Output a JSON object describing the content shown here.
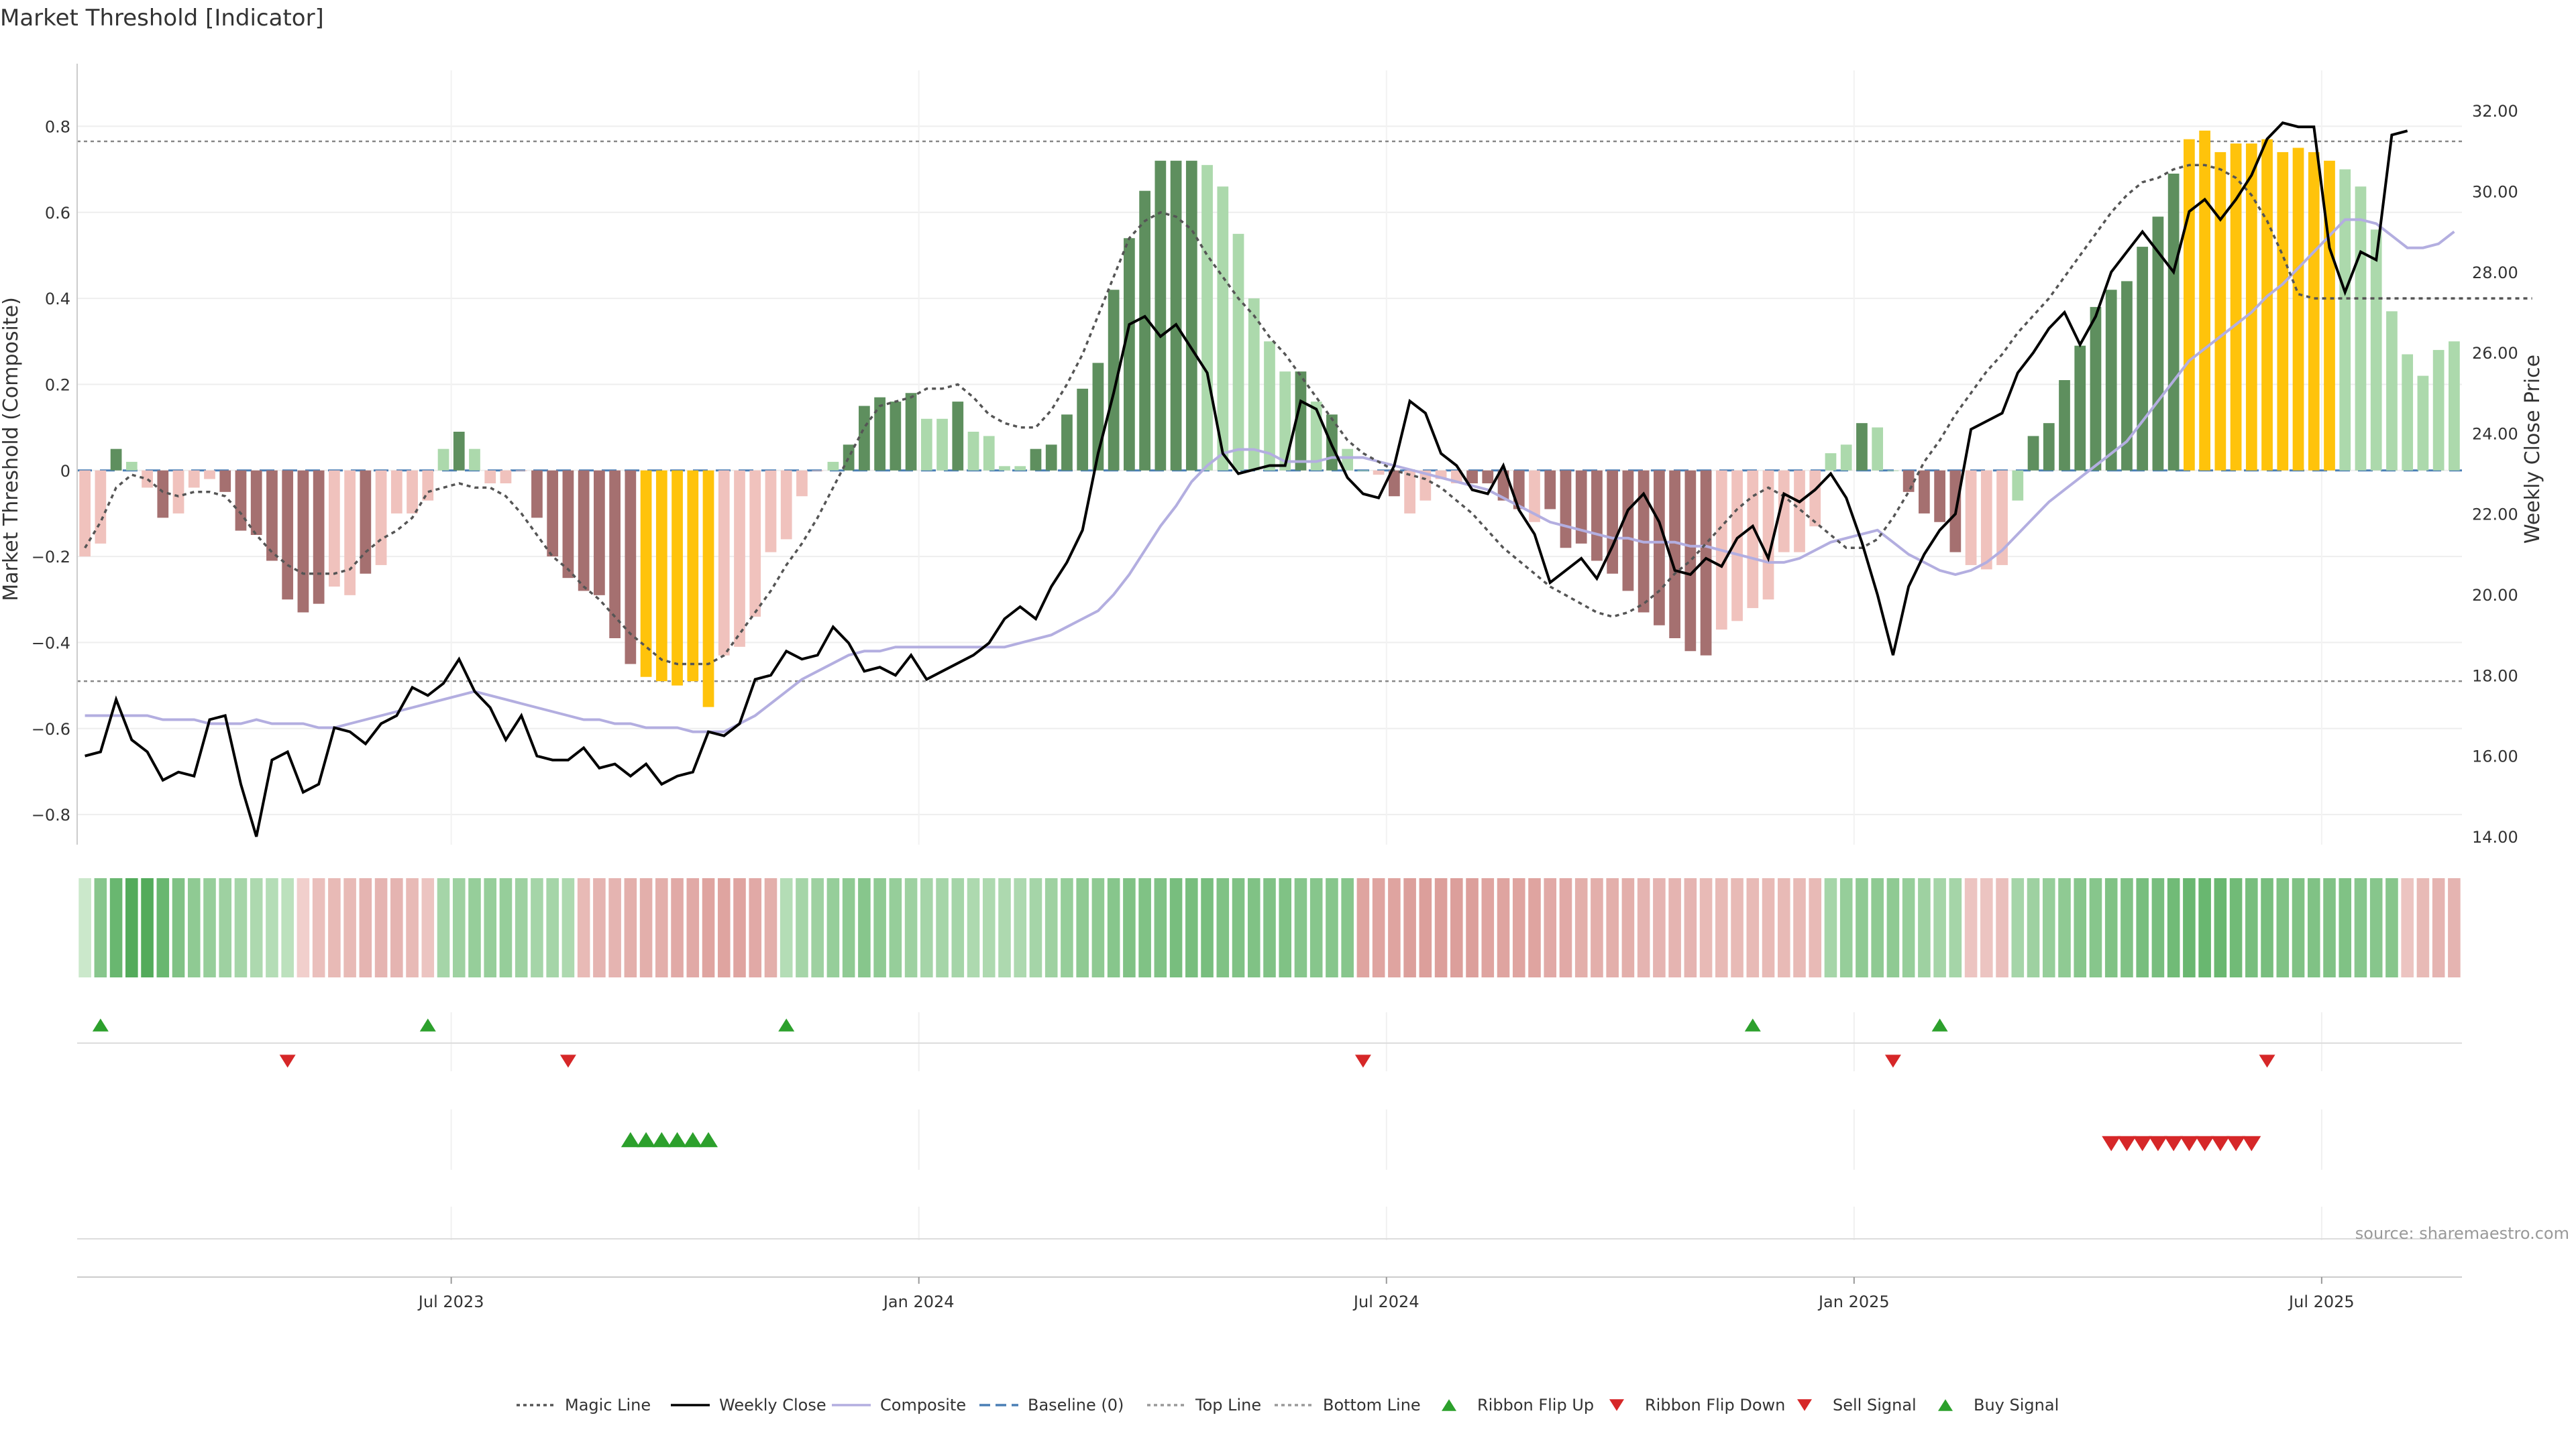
{
  "chart_data": {
    "type": "bar",
    "title": "Market Threshold [Indicator]",
    "ylabel": "Market Threshold (Composite)",
    "y2label": "Weekly Close Price",
    "ylim": [
      -0.87,
      0.93
    ],
    "y2lim": [
      13.8,
      33.0
    ],
    "yticks": [
      "0.8",
      "0.6",
      "0.4",
      "0.2",
      "0",
      "−0.2",
      "−0.4",
      "−0.6",
      "−0.8"
    ],
    "yticks_values": [
      0.8,
      0.6,
      0.4,
      0.2,
      0,
      -0.2,
      -0.4,
      -0.6,
      -0.8
    ],
    "y2ticks": [
      "32.00",
      "30.00",
      "28.00",
      "26.00",
      "24.00",
      "22.00",
      "20.00",
      "18.00",
      "16.00",
      "14.00"
    ],
    "y2ticks_values": [
      32,
      30,
      28,
      26,
      24,
      22,
      20,
      18,
      16,
      14
    ],
    "xticks": [
      "Jul 2023",
      "Jan 2024",
      "Jul 2024",
      "Jan 2025",
      "Jul 2025"
    ],
    "xticks_index": [
      23.5,
      53.5,
      83.5,
      113.5,
      143.5
    ],
    "top_line": 0.765,
    "bottom_line": -0.49,
    "baseline": 0,
    "grid": true,
    "legend_position": "bottom-center",
    "source": "source: sharemaestro.com",
    "legend": [
      {
        "label": "Magic Line",
        "style": "dotted",
        "color": "#555555"
      },
      {
        "label": "Weekly Close",
        "style": "solid",
        "color": "#000000"
      },
      {
        "label": "Composite",
        "style": "solid",
        "color": "#b3aee0"
      },
      {
        "label": "Baseline (0)",
        "style": "dashed",
        "color": "#4a7fb5"
      },
      {
        "label": "Top Line",
        "style": "dotted",
        "color": "#999999"
      },
      {
        "label": "Bottom Line",
        "style": "dotted",
        "color": "#999999"
      },
      {
        "label": "Ribbon Flip Up",
        "style": "tri-up",
        "color": "#2ca02c"
      },
      {
        "label": "Ribbon Flip Down",
        "style": "tri-down",
        "color": "#d62728"
      },
      {
        "label": "Sell Signal",
        "style": "tri-down",
        "color": "#d62728"
      },
      {
        "label": "Buy Signal",
        "style": "tri-up",
        "color": "#2ca02c"
      }
    ],
    "colors": {
      "strong_green": "#5e8f5e",
      "light_green": "#acd9ac",
      "strong_red": "#a57070",
      "light_red": "#f0c2bd",
      "extreme": "#ffc30b",
      "magic": "#555555",
      "close": "#000000",
      "composite": "#b3aee0"
    },
    "bars": [
      -0.2,
      -0.17,
      0.05,
      0.02,
      -0.04,
      -0.11,
      -0.1,
      -0.04,
      -0.02,
      -0.05,
      -0.14,
      -0.15,
      -0.21,
      -0.3,
      -0.33,
      -0.31,
      -0.27,
      -0.29,
      -0.24,
      -0.22,
      -0.1,
      -0.1,
      -0.07,
      0.05,
      0.09,
      0.05,
      -0.03,
      -0.03,
      0,
      -0.11,
      -0.2,
      -0.25,
      -0.28,
      -0.29,
      -0.39,
      -0.45,
      -0.48,
      -0.49,
      -0.5,
      -0.49,
      -0.55,
      -0.43,
      -0.41,
      -0.34,
      -0.19,
      -0.16,
      -0.06,
      0,
      0.02,
      0.06,
      0.15,
      0.17,
      0.16,
      0.18,
      0.12,
      0.12,
      0.16,
      0.09,
      0.08,
      0.01,
      0.01,
      0.05,
      0.06,
      0.13,
      0.19,
      0.25,
      0.42,
      0.54,
      0.65,
      0.72,
      0.72,
      0.72,
      0.71,
      0.66,
      0.55,
      0.4,
      0.3,
      0.23,
      0.23,
      0.16,
      0.13,
      0.05,
      0,
      -0.01,
      -0.06,
      -0.1,
      -0.07,
      -0.02,
      -0.03,
      -0.03,
      -0.03,
      -0.07,
      -0.09,
      -0.12,
      -0.09,
      -0.18,
      -0.17,
      -0.21,
      -0.24,
      -0.28,
      -0.33,
      -0.36,
      -0.39,
      -0.42,
      -0.43,
      -0.37,
      -0.35,
      -0.32,
      -0.3,
      -0.19,
      -0.19,
      -0.13,
      0.04,
      0.06,
      0.11,
      0.1,
      0,
      -0.05,
      -0.1,
      -0.12,
      -0.19,
      -0.22,
      -0.23,
      -0.22,
      -0.07,
      0.08,
      0.11,
      0.21,
      0.29,
      0.38,
      0.42,
      0.44,
      0.52,
      0.59,
      0.69,
      0.77,
      0.79,
      0.74,
      0.76,
      0.76,
      0.77,
      0.74,
      0.75,
      0.74,
      0.72,
      0.7,
      0.66,
      0.56,
      0.37,
      0.27,
      0.22,
      0.28,
      0.3
    ],
    "bar_style": [
      "lr",
      "lr",
      "sg",
      "lg",
      "lr",
      "sr",
      "lr",
      "lr",
      "lr",
      "sr",
      "sr",
      "sr",
      "sr",
      "sr",
      "sr",
      "sr",
      "lr",
      "lr",
      "sr",
      "lr",
      "lr",
      "lr",
      "lr",
      "lg",
      "sg",
      "lg",
      "lr",
      "lr",
      "lr",
      "sr",
      "sr",
      "sr",
      "sr",
      "sr",
      "sr",
      "sr",
      "ex",
      "ex",
      "ex",
      "ex",
      "ex",
      "lr",
      "lr",
      "lr",
      "lr",
      "lr",
      "lr",
      "lr",
      "lg",
      "sg",
      "sg",
      "sg",
      "sg",
      "sg",
      "lg",
      "lg",
      "sg",
      "lg",
      "lg",
      "lg",
      "lg",
      "sg",
      "sg",
      "sg",
      "sg",
      "sg",
      "sg",
      "sg",
      "sg",
      "sg",
      "sg",
      "sg",
      "lg",
      "lg",
      "lg",
      "lg",
      "lg",
      "lg",
      "sg",
      "lg",
      "sg",
      "lg",
      "lg",
      "lr",
      "sr",
      "lr",
      "lr",
      "lr",
      "lr",
      "sr",
      "sr",
      "sr",
      "sr",
      "lr",
      "sr",
      "sr",
      "sr",
      "sr",
      "sr",
      "sr",
      "sr",
      "sr",
      "sr",
      "sr",
      "sr",
      "lr",
      "lr",
      "lr",
      "lr",
      "lr",
      "lr",
      "lr",
      "lg",
      "lg",
      "sg",
      "lg",
      "lg",
      "sr",
      "sr",
      "sr",
      "sr",
      "lr",
      "lr",
      "lr",
      "lg",
      "sg",
      "sg",
      "sg",
      "sg",
      "sg",
      "sg",
      "sg",
      "sg",
      "sg",
      "sg",
      "ex",
      "ex",
      "ex",
      "ex",
      "ex",
      "ex",
      "ex",
      "ex",
      "ex",
      "ex",
      "lg",
      "lg",
      "lg",
      "lg",
      "lg",
      "lg",
      "lg",
      "lg",
      "sg",
      "sg"
    ],
    "magic_line": [
      -0.18,
      -0.12,
      -0.04,
      -0.01,
      -0.02,
      -0.05,
      -0.06,
      -0.05,
      -0.05,
      -0.06,
      -0.1,
      -0.15,
      -0.19,
      -0.22,
      -0.24,
      -0.24,
      -0.24,
      -0.23,
      -0.19,
      -0.16,
      -0.14,
      -0.11,
      -0.05,
      -0.04,
      -0.03,
      -0.04,
      -0.04,
      -0.06,
      -0.1,
      -0.15,
      -0.2,
      -0.23,
      -0.27,
      -0.3,
      -0.34,
      -0.38,
      -0.41,
      -0.44,
      -0.45,
      -0.45,
      -0.45,
      -0.43,
      -0.38,
      -0.33,
      -0.28,
      -0.22,
      -0.17,
      -0.11,
      -0.04,
      0.03,
      0.1,
      0.15,
      0.16,
      0.17,
      0.19,
      0.19,
      0.2,
      0.17,
      0.13,
      0.11,
      0.1,
      0.1,
      0.14,
      0.2,
      0.27,
      0.36,
      0.45,
      0.54,
      0.58,
      0.6,
      0.59,
      0.56,
      0.5,
      0.45,
      0.4,
      0.36,
      0.31,
      0.27,
      0.22,
      0.17,
      0.12,
      0.07,
      0.04,
      0.02,
      0,
      -0.01,
      -0.02,
      -0.04,
      -0.07,
      -0.1,
      -0.14,
      -0.18,
      -0.21,
      -0.24,
      -0.27,
      -0.29,
      -0.31,
      -0.33,
      -0.34,
      -0.33,
      -0.31,
      -0.28,
      -0.24,
      -0.21,
      -0.17,
      -0.13,
      -0.09,
      -0.06,
      -0.04,
      -0.06,
      -0.09,
      -0.12,
      -0.15,
      -0.18,
      -0.18,
      -0.16,
      -0.11,
      -0.05,
      0.02,
      0.07,
      0.13,
      0.18,
      0.23,
      0.27,
      0.32,
      0.36,
      0.4,
      0.45,
      0.5,
      0.55,
      0.6,
      0.64,
      0.67,
      0.68,
      0.7,
      0.71,
      0.71,
      0.7,
      0.68,
      0.64,
      0.58,
      0.5,
      0.41,
      0.4,
      0.4,
      0.4,
      0.4,
      0.4,
      0.4,
      0.4,
      0.4,
      0.4,
      0.4,
      0.4,
      0.4,
      0.4,
      0.4,
      0.4
    ],
    "weekly_close": [
      16.0,
      16.1,
      17.4,
      16.4,
      16.1,
      15.4,
      15.6,
      15.5,
      16.9,
      17.0,
      15.3,
      14.0,
      15.9,
      16.1,
      15.1,
      15.3,
      16.7,
      16.6,
      16.3,
      16.8,
      17.0,
      17.7,
      17.5,
      17.8,
      18.4,
      17.6,
      17.2,
      16.4,
      17.0,
      16.0,
      15.9,
      15.9,
      16.2,
      15.7,
      15.8,
      15.5,
      15.8,
      15.3,
      15.5,
      15.6,
      16.6,
      16.5,
      16.8,
      17.9,
      18.0,
      18.6,
      18.4,
      18.5,
      19.2,
      18.8,
      18.1,
      18.2,
      18.0,
      18.5,
      17.9,
      18.1,
      18.3,
      18.5,
      18.8,
      19.4,
      19.7,
      19.4,
      20.2,
      20.8,
      21.6,
      23.5,
      25.0,
      26.7,
      26.9,
      26.4,
      26.7,
      26.1,
      25.5,
      23.5,
      23.0,
      23.1,
      23.2,
      23.2,
      24.8,
      24.6,
      23.7,
      22.9,
      22.5,
      22.4,
      23.2,
      24.8,
      24.5,
      23.5,
      23.2,
      22.6,
      22.5,
      23.2,
      22.1,
      21.5,
      20.3,
      20.6,
      20.9,
      20.4,
      21.2,
      22.1,
      22.5,
      21.8,
      20.6,
      20.5,
      20.9,
      20.7,
      21.4,
      21.7,
      20.9,
      22.5,
      22.3,
      22.6,
      23.0,
      22.4,
      21.3,
      20.0,
      18.5,
      20.2,
      21.0,
      21.6,
      22.0,
      24.1,
      24.3,
      24.5,
      25.5,
      26.0,
      26.6,
      27.0,
      26.2,
      26.9,
      28.0,
      28.5,
      29.0,
      28.5,
      28.0,
      29.5,
      29.8,
      29.3,
      29.8,
      30.4,
      31.3,
      31.7,
      31.6,
      31.6,
      28.6,
      27.5,
      28.5,
      28.3,
      31.4,
      31.5
    ],
    "composite": [
      17.0,
      17.0,
      17.0,
      17.0,
      17.0,
      16.9,
      16.9,
      16.9,
      16.8,
      16.8,
      16.8,
      16.9,
      16.8,
      16.8,
      16.8,
      16.7,
      16.7,
      16.8,
      16.9,
      17.0,
      17.1,
      17.2,
      17.3,
      17.4,
      17.5,
      17.6,
      17.5,
      17.4,
      17.3,
      17.2,
      17.1,
      17.0,
      16.9,
      16.9,
      16.8,
      16.8,
      16.7,
      16.7,
      16.7,
      16.6,
      16.6,
      16.6,
      16.8,
      17.0,
      17.3,
      17.6,
      17.9,
      18.1,
      18.3,
      18.5,
      18.6,
      18.6,
      18.7,
      18.7,
      18.7,
      18.7,
      18.7,
      18.7,
      18.7,
      18.7,
      18.8,
      18.9,
      19.0,
      19.2,
      19.4,
      19.6,
      20.0,
      20.5,
      21.1,
      21.7,
      22.2,
      22.8,
      23.2,
      23.5,
      23.6,
      23.6,
      23.5,
      23.3,
      23.3,
      23.3,
      23.4,
      23.4,
      23.4,
      23.3,
      23.2,
      23.1,
      23.0,
      22.9,
      22.8,
      22.7,
      22.6,
      22.4,
      22.2,
      22.0,
      21.8,
      21.7,
      21.6,
      21.5,
      21.4,
      21.4,
      21.3,
      21.3,
      21.3,
      21.2,
      21.2,
      21.1,
      21.0,
      20.9,
      20.8,
      20.8,
      20.9,
      21.1,
      21.3,
      21.4,
      21.5,
      21.6,
      21.3,
      21.0,
      20.8,
      20.6,
      20.5,
      20.6,
      20.8,
      21.1,
      21.5,
      21.9,
      22.3,
      22.6,
      22.9,
      23.2,
      23.5,
      23.8,
      24.3,
      24.8,
      25.3,
      25.8,
      26.1,
      26.4,
      26.7,
      27.0,
      27.4,
      27.7,
      28.1,
      28.5,
      28.9,
      29.3,
      29.3,
      29.2,
      28.9,
      28.6,
      28.6,
      28.7,
      29.0
    ],
    "ribbon_values": [
      0.05,
      0.5,
      0.7,
      0.85,
      0.85,
      0.7,
      0.55,
      0.45,
      0.4,
      0.35,
      0.3,
      0.25,
      0.2,
      0.15,
      -0.1,
      -0.25,
      -0.3,
      -0.3,
      -0.35,
      -0.35,
      -0.35,
      -0.3,
      -0.2,
      0.3,
      0.35,
      0.4,
      0.4,
      0.4,
      0.35,
      0.3,
      0.3,
      0.25,
      -0.3,
      -0.35,
      -0.35,
      -0.4,
      -0.4,
      -0.4,
      -0.45,
      -0.45,
      -0.5,
      -0.5,
      -0.5,
      -0.45,
      -0.4,
      0.2,
      0.3,
      0.35,
      0.4,
      0.45,
      0.5,
      0.45,
      0.4,
      0.35,
      0.3,
      0.3,
      0.3,
      0.25,
      0.25,
      0.25,
      0.25,
      0.3,
      0.35,
      0.4,
      0.45,
      0.45,
      0.5,
      0.55,
      0.55,
      0.55,
      0.6,
      0.6,
      0.6,
      0.55,
      0.55,
      0.55,
      0.55,
      0.55,
      0.5,
      0.5,
      0.5,
      0.5,
      -0.5,
      -0.5,
      -0.5,
      -0.55,
      -0.55,
      -0.55,
      -0.55,
      -0.55,
      -0.5,
      -0.5,
      -0.5,
      -0.5,
      -0.45,
      -0.45,
      -0.4,
      -0.4,
      -0.4,
      -0.4,
      -0.35,
      -0.35,
      -0.35,
      -0.35,
      -0.3,
      -0.3,
      -0.3,
      -0.3,
      -0.3,
      -0.3,
      -0.3,
      -0.3,
      0.3,
      0.4,
      0.45,
      0.45,
      0.45,
      0.4,
      0.35,
      0.3,
      0.3,
      -0.2,
      -0.2,
      -0.25,
      0.3,
      0.35,
      0.4,
      0.45,
      0.5,
      0.5,
      0.55,
      0.55,
      0.6,
      0.6,
      0.65,
      0.7,
      0.7,
      0.7,
      0.65,
      0.6,
      0.6,
      0.55,
      0.55,
      0.55,
      0.55,
      0.55,
      0.5,
      0.5,
      0.5,
      -0.2,
      -0.3,
      -0.35,
      -0.35
    ],
    "ribbon_flip_up_index": [
      1,
      22,
      45,
      107,
      119
    ],
    "ribbon_flip_down_index": [
      13,
      31,
      82,
      116,
      140
    ],
    "buy_signal_index": [
      35,
      36,
      37,
      38,
      39,
      40
    ],
    "sell_signal_index": [
      130,
      131,
      132,
      133,
      134,
      135,
      136,
      137,
      138,
      139
    ]
  }
}
